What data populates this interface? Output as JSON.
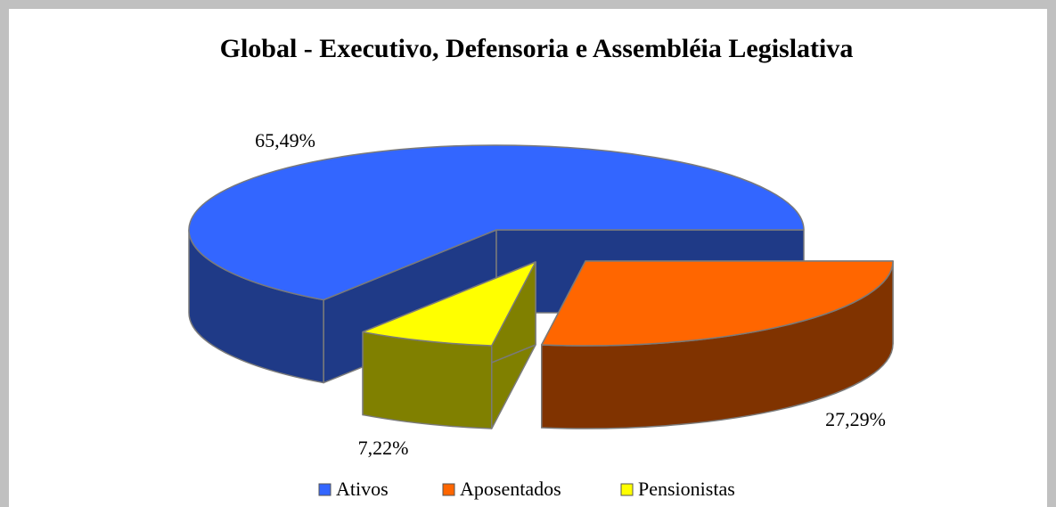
{
  "chart_data": {
    "type": "pie3d",
    "title": "Global - Executivo, Defensoria e Assembléia Legislativa",
    "categories": [
      "Ativos",
      "Aposentados",
      "Pensionistas"
    ],
    "values": [
      65.49,
      27.29,
      7.22
    ],
    "value_labels": [
      "65,49%",
      "27,29%",
      "7,22%"
    ],
    "colors": [
      "#3366ff",
      "#ff6600",
      "#ffff00"
    ],
    "side_colors": [
      "#1f3a87",
      "#803300",
      "#808000"
    ],
    "legend": "bottom"
  }
}
